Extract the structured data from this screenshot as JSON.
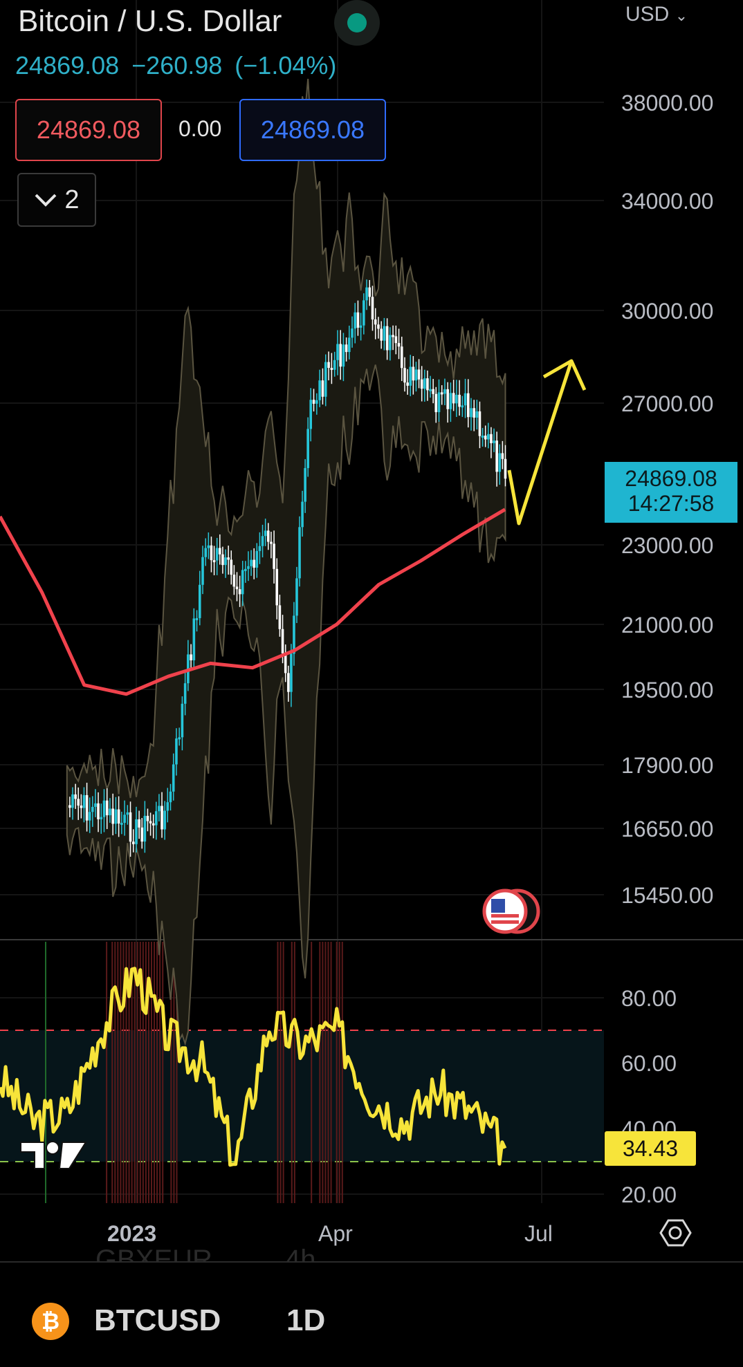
{
  "header": {
    "title": "Bitcoin / U.S. Dollar",
    "last_price": "24869.08",
    "change": "−260.98",
    "change_pct": "(−1.04%)",
    "bid": "24869.08",
    "spread": "0.00",
    "ask": "24869.08",
    "indicators_count": "2",
    "currency": "USD"
  },
  "price_axis": {
    "labels": [
      "38000.00",
      "34000.00",
      "30000.00",
      "27000.00",
      "23000.00",
      "21000.00",
      "19500.00",
      "17900.00",
      "16650.00",
      "15450.00"
    ],
    "current_price": "24869.08",
    "countdown": "14:27:58"
  },
  "rsi_axis": {
    "labels": [
      "80.00",
      "60.00",
      "40.00",
      "20.00"
    ],
    "current": "34.43"
  },
  "time_axis": {
    "labels": [
      "2023",
      "Apr",
      "Jul"
    ]
  },
  "ghost_row": {
    "symbol": "GBXEUR",
    "interval": "4h"
  },
  "bottom_bar": {
    "symbol": "BTCUSD",
    "interval": "1D",
    "coin_glyph": "₿"
  },
  "colors": {
    "candle": "#26c6da",
    "ma": "#f0424c",
    "rsi": "#f7e43a",
    "rsi_overbought": "#f0424c",
    "arrow": "#f7e43a",
    "band": "#1b1a12"
  },
  "chart_data": {
    "type": "line",
    "price_series": [
      {
        "name": "BTCUSD",
        "x": [
          "2022-12-01",
          "2022-12-15",
          "2023-01-01",
          "2023-01-15",
          "2023-02-01",
          "2023-02-15",
          "2023-03-01",
          "2023-03-10",
          "2023-03-20",
          "2023-04-01",
          "2023-04-14",
          "2023-05-01",
          "2023-05-15",
          "2023-06-01",
          "2023-06-15"
        ],
        "values": [
          17100,
          17000,
          16600,
          17000,
          23000,
          22000,
          23300,
          19700,
          27000,
          28500,
          30300,
          28000,
          27000,
          26800,
          24869
        ]
      }
    ],
    "ma_series": {
      "values": [
        23800,
        21800,
        19600,
        19400,
        19800,
        20100,
        20000,
        20400,
        21000,
        22000,
        22600,
        23300,
        24000
      ]
    },
    "rsi_series": {
      "values": [
        55,
        42,
        45,
        70,
        88,
        68,
        60,
        30,
        72,
        66,
        70,
        50,
        42,
        52,
        45,
        34
      ]
    },
    "rsi_levels": [
      70,
      30
    ],
    "y_range": [
      15000,
      40000
    ],
    "rsi_range": [
      15,
      100
    ]
  }
}
